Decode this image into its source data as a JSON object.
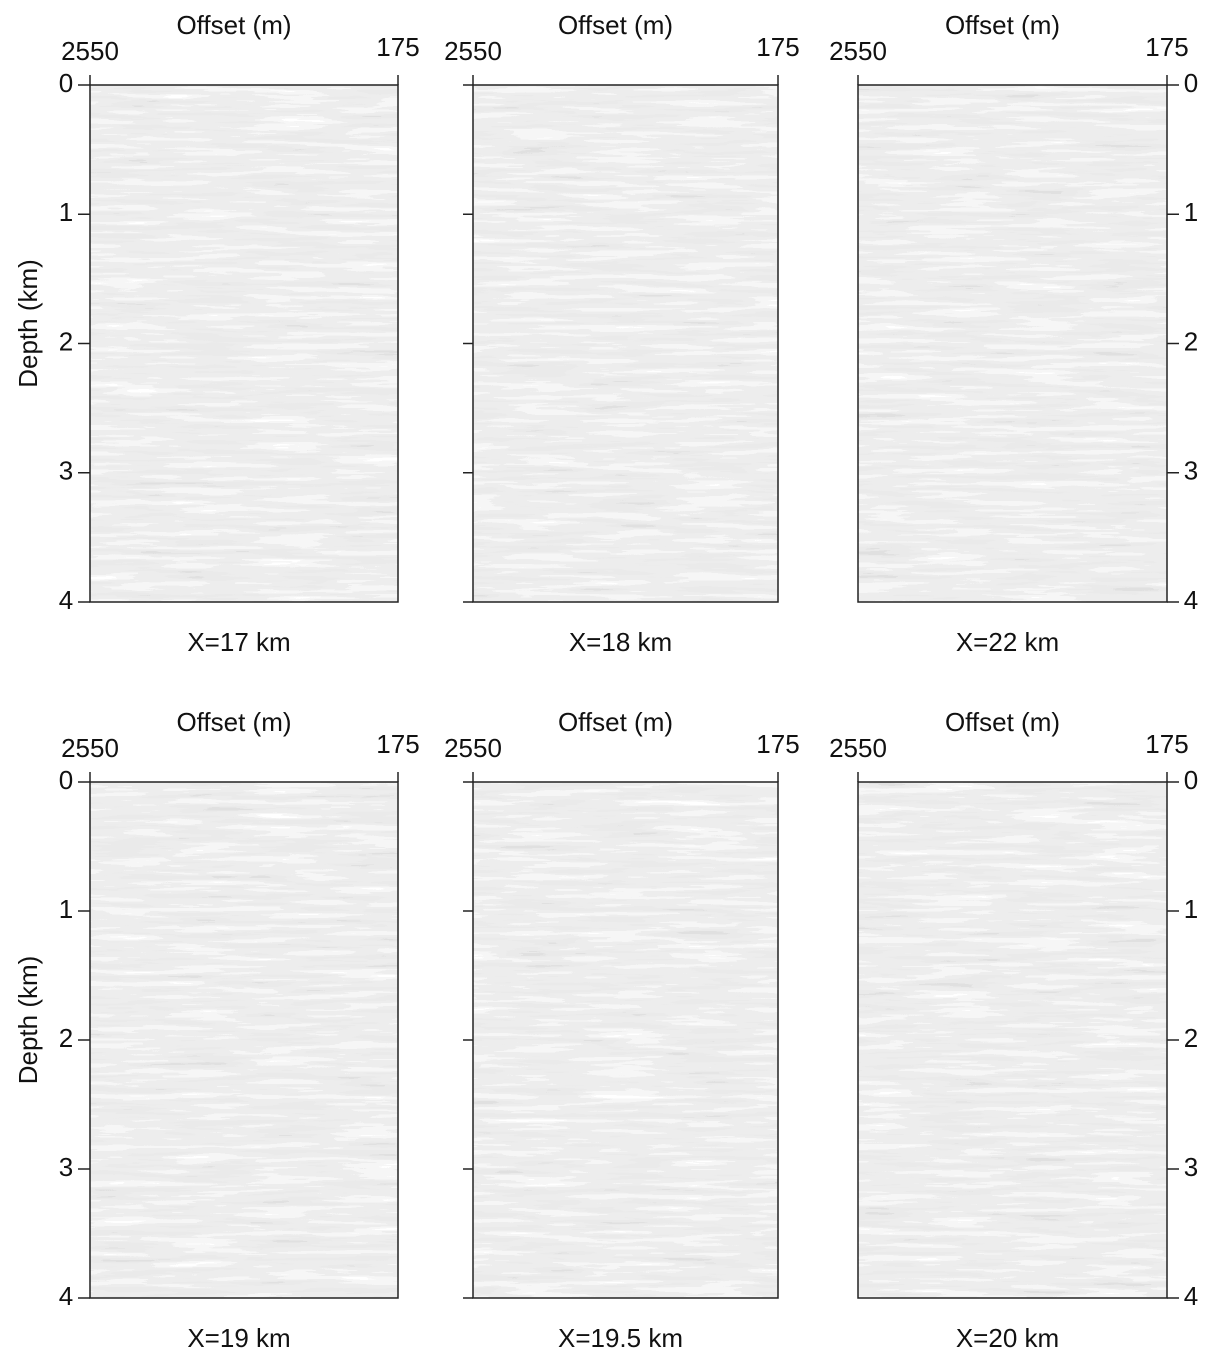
{
  "panels": [
    {
      "xlabel": "Offset (m)",
      "xticks": [
        "2550",
        "175"
      ],
      "ylabel": "Depth (km)",
      "yticks": [
        0,
        1,
        2,
        3,
        4
      ],
      "caption": "X=17 km"
    },
    {
      "xlabel": "Offset (m)",
      "xticks": [
        "2550",
        "175"
      ],
      "caption": "X=18 km"
    },
    {
      "xlabel": "Offset (m)",
      "xticks": [
        "2550",
        "175"
      ],
      "yticks": [
        0,
        1,
        2,
        3,
        4
      ],
      "caption": "X=22 km"
    },
    {
      "xlabel": "Offset (m)",
      "xticks": [
        "2550",
        "175"
      ],
      "ylabel": "Depth (km)",
      "yticks": [
        0,
        1,
        2,
        3,
        4
      ],
      "caption": "X=19 km"
    },
    {
      "xlabel": "Offset (m)",
      "xticks": [
        "2550",
        "175"
      ],
      "caption": "X=19.5 km"
    },
    {
      "xlabel": "Offset (m)",
      "xticks": [
        "2550",
        "175"
      ],
      "yticks": [
        0,
        1,
        2,
        3,
        4
      ],
      "caption": "X=20 km"
    }
  ]
}
